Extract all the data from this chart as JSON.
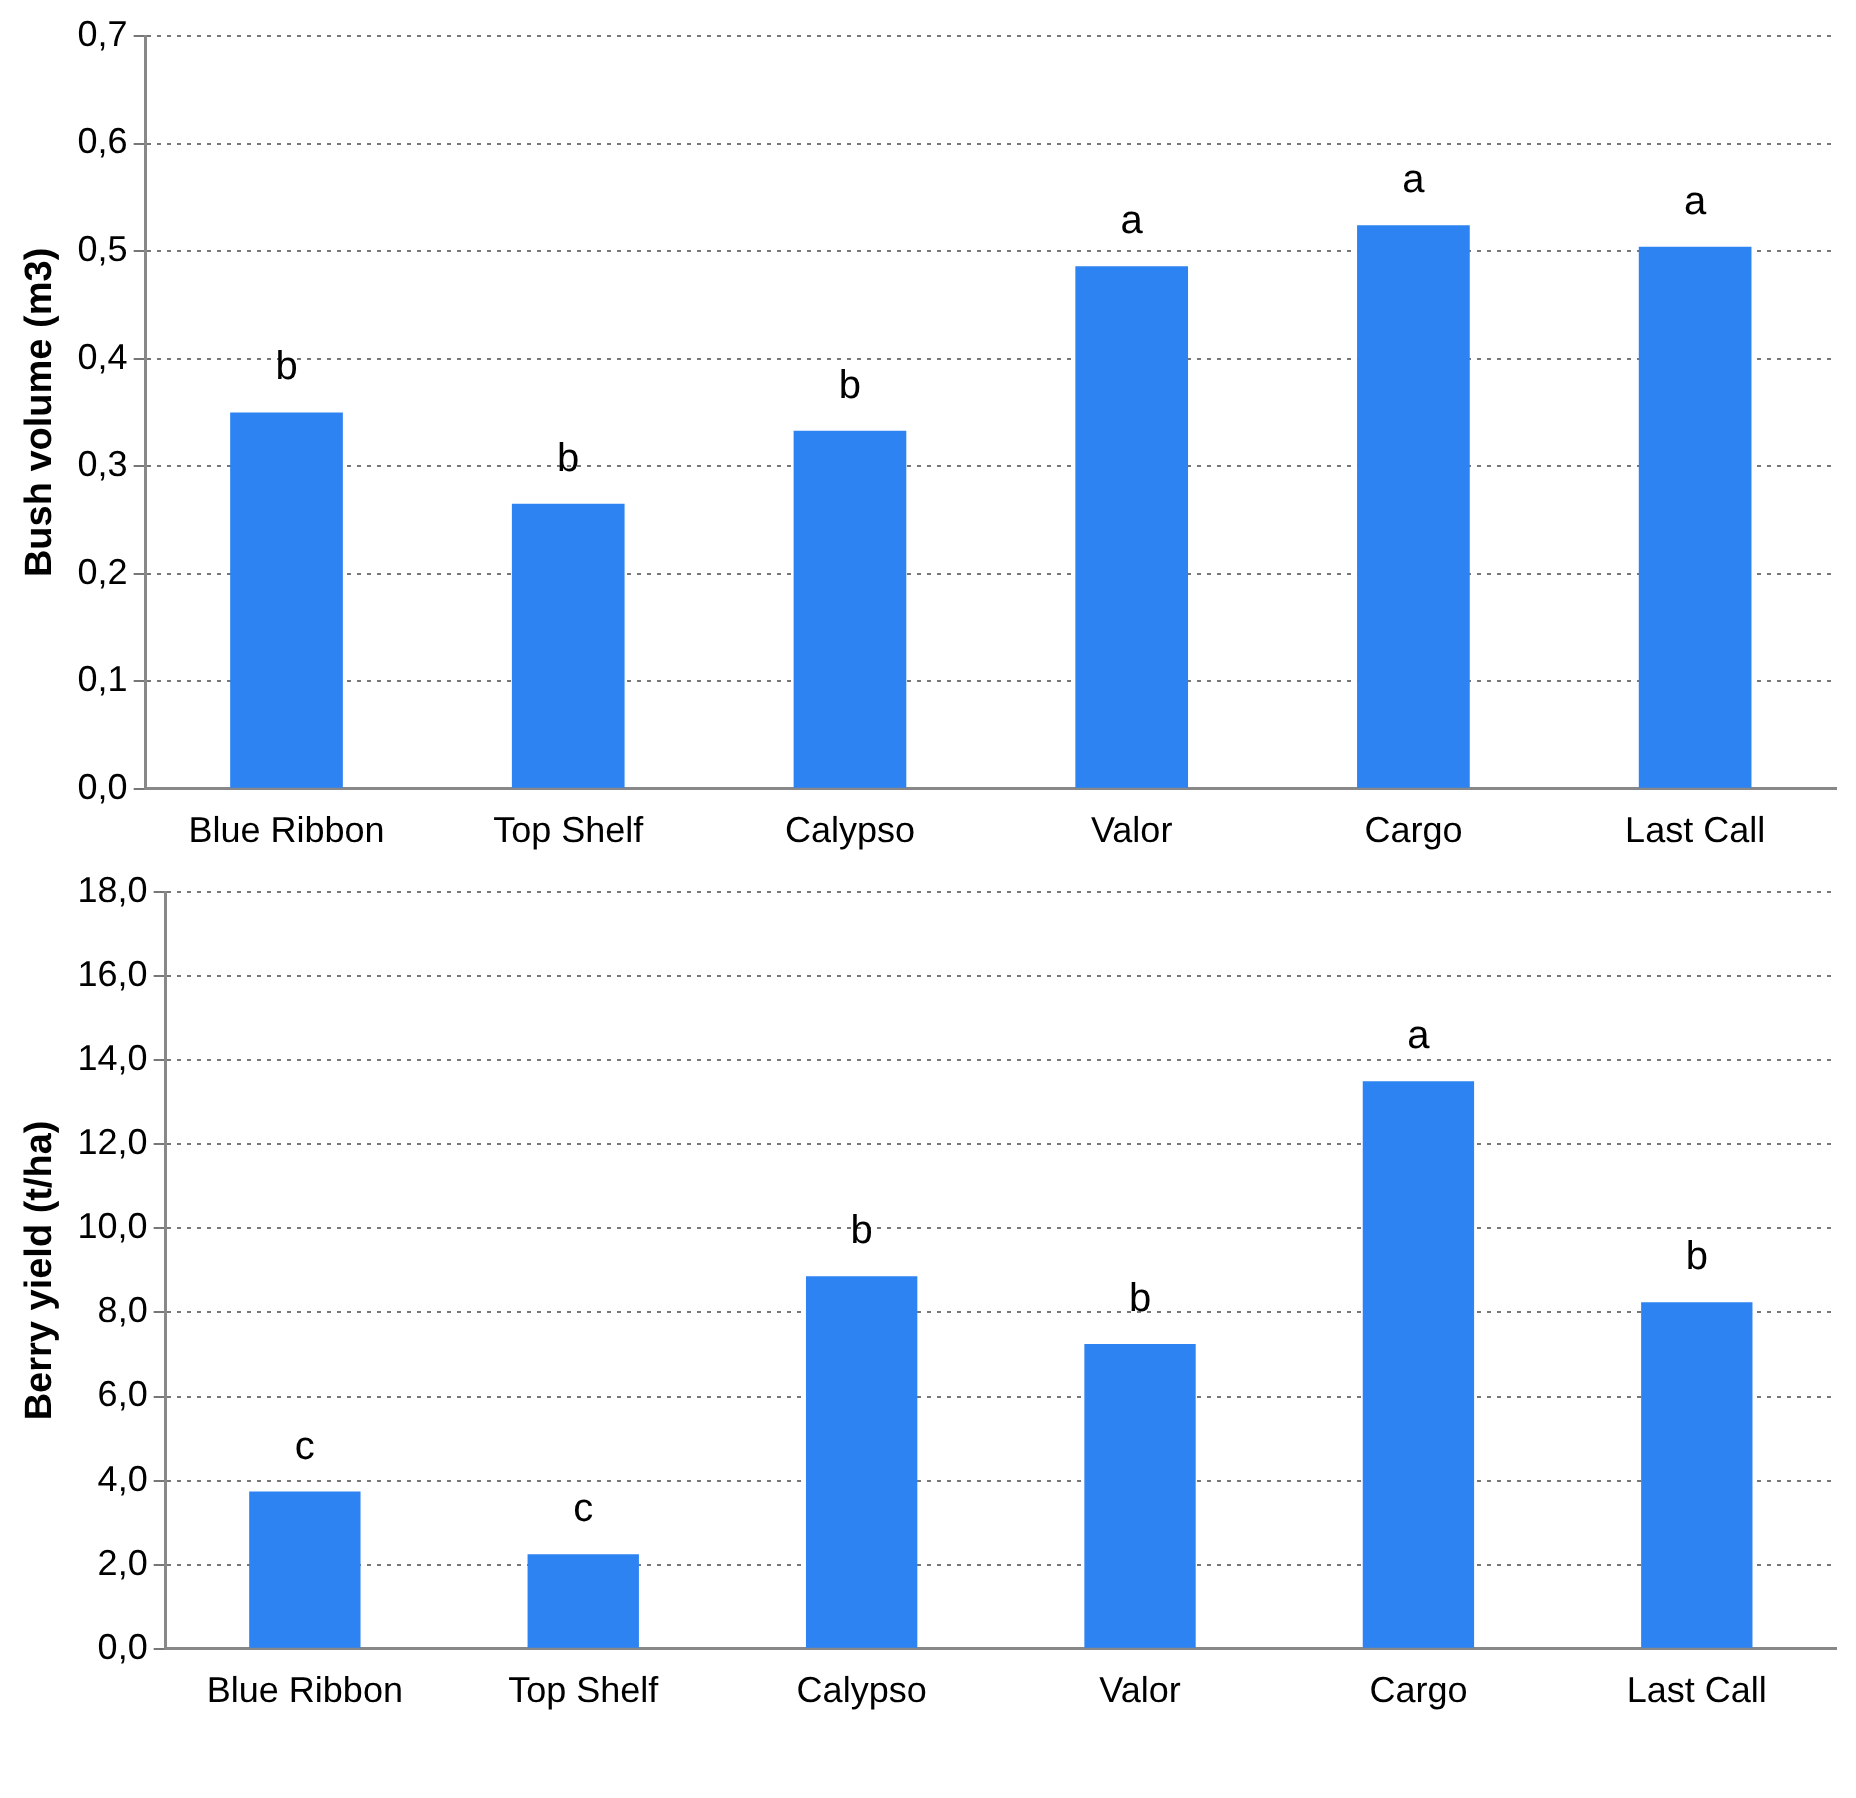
{
  "chart_data": [
    {
      "type": "bar",
      "ylabel": "Bush volume (m3)",
      "categories": [
        "Blue Ribbon",
        "Top Shelf",
        "Calypso",
        "Valor",
        "Cargo",
        "Last Call"
      ],
      "values": [
        0.35,
        0.265,
        0.333,
        0.486,
        0.524,
        0.504
      ],
      "color": "#2e83f2",
      "ylim": [
        0,
        0.7
      ],
      "yticks": [
        {
          "value": 0,
          "label": "0,0"
        },
        {
          "value": 0.1,
          "label": "0,1"
        },
        {
          "value": 0.2,
          "label": "0,2"
        },
        {
          "value": 0.3,
          "label": "0,3"
        },
        {
          "value": 0.4,
          "label": "0,4"
        },
        {
          "value": 0.5,
          "label": "0,5"
        },
        {
          "value": 0.6,
          "label": "0,6"
        },
        {
          "value": 0.7,
          "label": "0,7"
        }
      ],
      "grid": "y",
      "legend": false,
      "annotations": [
        {
          "text": "b",
          "x": "Blue Ribbon",
          "y": 0.35
        },
        {
          "text": "b",
          "x": "Top Shelf",
          "y": 0.265
        },
        {
          "text": "b",
          "x": "Calypso",
          "y": 0.333
        },
        {
          "text": "a",
          "x": "Valor",
          "y": 0.486
        },
        {
          "text": "a",
          "x": "Cargo",
          "y": 0.524
        },
        {
          "text": "a",
          "x": "Last Call",
          "y": 0.504
        }
      ]
    },
    {
      "type": "bar",
      "ylabel": "Berry yield (t/ha)",
      "categories": [
        "Blue Ribbon",
        "Top Shelf",
        "Calypso",
        "Valor",
        "Cargo",
        "Last Call"
      ],
      "values": [
        3.74,
        2.25,
        8.86,
        7.25,
        13.5,
        8.24
      ],
      "color": "#2e83f2",
      "ylim": [
        0,
        18
      ],
      "yticks": [
        {
          "value": 0,
          "label": "0,0"
        },
        {
          "value": 2,
          "label": "2,0"
        },
        {
          "value": 4,
          "label": "4,0"
        },
        {
          "value": 6,
          "label": "6,0"
        },
        {
          "value": 8,
          "label": "8,0"
        },
        {
          "value": 10,
          "label": "10,0"
        },
        {
          "value": 12,
          "label": "12,0"
        },
        {
          "value": 14,
          "label": "14,0"
        },
        {
          "value": 16,
          "label": "16,0"
        },
        {
          "value": 18,
          "label": "18,0"
        }
      ],
      "grid": "y",
      "legend": false,
      "annotations": [
        {
          "text": "c",
          "x": "Blue Ribbon",
          "y": 3.74
        },
        {
          "text": "c",
          "x": "Top Shelf",
          "y": 2.25
        },
        {
          "text": "b",
          "x": "Calypso",
          "y": 8.86
        },
        {
          "text": "b",
          "x": "Valor",
          "y": 7.25
        },
        {
          "text": "a",
          "x": "Cargo",
          "y": 13.5
        },
        {
          "text": "b",
          "x": "Last Call",
          "y": 8.24
        }
      ]
    }
  ]
}
